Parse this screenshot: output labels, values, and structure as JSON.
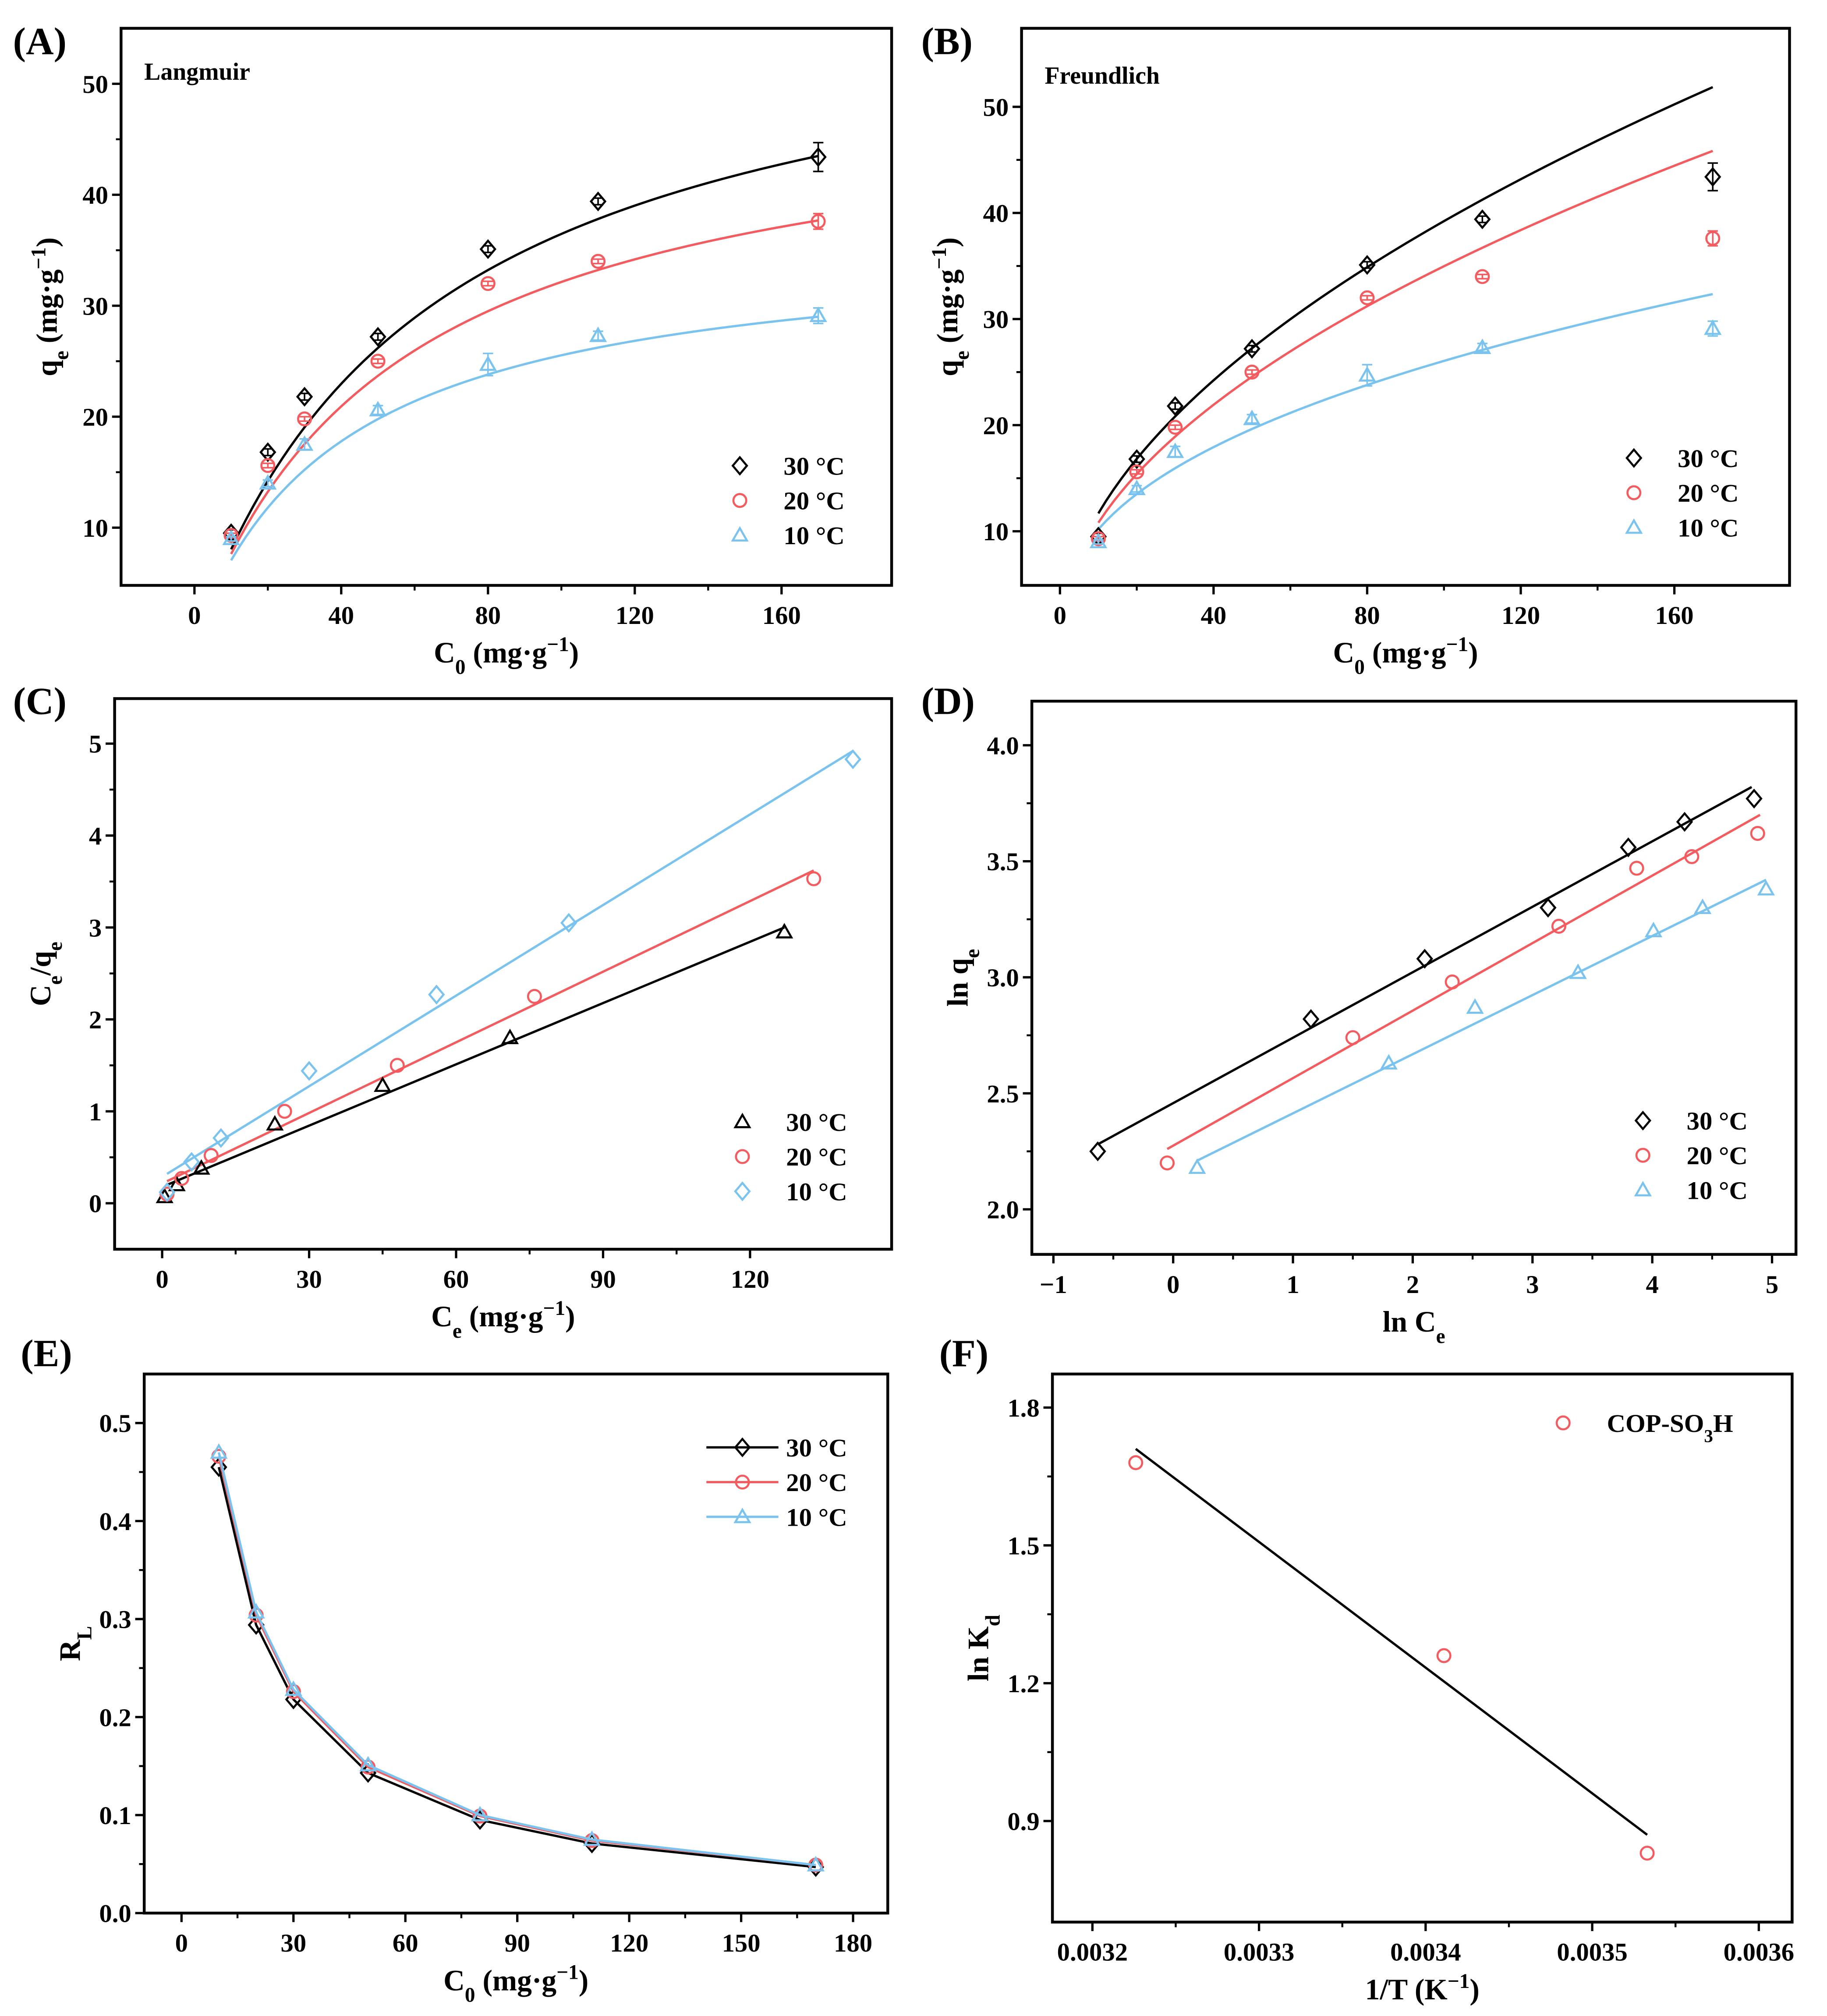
{
  "colors": {
    "t30": "#000000",
    "t20": "#f45b5f",
    "t10": "#79c3ee"
  },
  "chart_data": [
    {
      "id": "A",
      "letter": "(A)",
      "type": "scatter",
      "title": "Langmuir",
      "xlim": [
        -20,
        190
      ],
      "ylim": [
        4.8,
        55
      ],
      "xticks": [
        0,
        40,
        80,
        120,
        160
      ],
      "yticks": [
        10,
        20,
        30,
        40,
        50
      ],
      "xlabel": [
        [
          "C",
          ""
        ],
        [
          "0",
          "sub"
        ],
        [
          " (mg·g",
          ""
        ],
        [
          "−1",
          "sup"
        ],
        [
          ")",
          ""
        ]
      ],
      "ylabel": [
        [
          "q",
          ""
        ],
        [
          "e",
          "sub"
        ],
        [
          " (mg·g",
          ""
        ],
        [
          "−1",
          "sup"
        ],
        [
          ")",
          ""
        ]
      ],
      "legend": "bottom-right",
      "series": [
        {
          "name": "30 °C",
          "color": "t30",
          "marker": "diamond",
          "x": [
            10,
            20,
            30,
            50,
            80,
            110,
            170
          ],
          "y": [
            9.5,
            16.8,
            21.8,
            27.2,
            35.1,
            39.4,
            43.4
          ],
          "err": [
            0.3,
            0.3,
            0.3,
            0.3,
            0.3,
            0.3,
            1.3
          ],
          "fit": {
            "model": "langmuir",
            "qm": 60,
            "K": 0.0155
          }
        },
        {
          "name": "20 °C",
          "color": "t20",
          "marker": "circle",
          "x": [
            10,
            20,
            30,
            50,
            80,
            110,
            170
          ],
          "y": [
            9.3,
            15.6,
            19.8,
            25.0,
            32.0,
            34.0,
            37.6
          ],
          "err": [
            0.2,
            0.2,
            0.2,
            0.2,
            0.2,
            0.2,
            0.7
          ],
          "fit": {
            "model": "langmuir",
            "qm": 50,
            "K": 0.018
          }
        },
        {
          "name": "10 °C",
          "color": "t10",
          "marker": "triangle",
          "x": [
            10,
            20,
            30,
            50,
            80,
            110,
            170
          ],
          "y": [
            9.0,
            14.0,
            17.5,
            20.6,
            24.7,
            27.3,
            29.1
          ],
          "err": [
            0.2,
            0.3,
            0.5,
            0.4,
            1.0,
            0.4,
            0.7
          ],
          "fit": {
            "model": "langmuir",
            "qm": 36,
            "K": 0.0244
          }
        }
      ]
    },
    {
      "id": "B",
      "letter": "(B)",
      "type": "scatter",
      "title": "Freundlich",
      "xlim": [
        -10,
        190
      ],
      "ylim": [
        4.9,
        57.4
      ],
      "xticks": [
        0,
        40,
        80,
        120,
        160
      ],
      "yticks": [
        10,
        20,
        30,
        40,
        50
      ],
      "xlabel": [
        [
          "C",
          ""
        ],
        [
          "0",
          "sub"
        ],
        [
          " (mg·g",
          ""
        ],
        [
          "−1",
          "sup"
        ],
        [
          ")",
          ""
        ]
      ],
      "ylabel": [
        [
          "q",
          ""
        ],
        [
          "e",
          "sub"
        ],
        [
          " (mg·g",
          ""
        ],
        [
          "−1",
          "sup"
        ],
        [
          ")",
          ""
        ]
      ],
      "legend": "bottom-right",
      "series": [
        {
          "name": "30 °C",
          "color": "t30",
          "marker": "diamond",
          "x": [
            10,
            20,
            30,
            50,
            80,
            110,
            170
          ],
          "y": [
            9.5,
            16.8,
            21.8,
            27.2,
            35.1,
            39.4,
            43.4
          ],
          "err": [
            0.3,
            0.3,
            0.3,
            0.3,
            0.3,
            0.3,
            1.3
          ],
          "fit": {
            "model": "freundlich",
            "Kf": 3.48,
            "n_inv": 0.526
          }
        },
        {
          "name": "20 °C",
          "color": "t20",
          "marker": "circle",
          "x": [
            10,
            20,
            30,
            50,
            80,
            110,
            170
          ],
          "y": [
            9.3,
            15.6,
            19.8,
            25.0,
            32.0,
            34.0,
            37.6
          ],
          "err": [
            0.2,
            0.2,
            0.2,
            0.2,
            0.2,
            0.2,
            0.7
          ],
          "fit": {
            "model": "freundlich",
            "Kf": 3.34,
            "n_inv": 0.51
          }
        },
        {
          "name": "10 °C",
          "color": "t10",
          "marker": "triangle",
          "x": [
            10,
            20,
            30,
            50,
            80,
            110,
            170
          ],
          "y": [
            9.0,
            14.0,
            17.5,
            20.6,
            24.7,
            27.3,
            29.1
          ],
          "err": [
            0.2,
            0.3,
            0.5,
            0.4,
            1.0,
            0.4,
            0.7
          ],
          "fit": {
            "model": "freundlich",
            "Kf": 3.98,
            "n_inv": 0.408
          }
        }
      ]
    },
    {
      "id": "C",
      "letter": "(C)",
      "type": "scatter",
      "title": "",
      "xlim": [
        -9.7,
        148.9
      ],
      "ylim": [
        -0.5,
        5.49
      ],
      "xticks": [
        0,
        30,
        60,
        90,
        120
      ],
      "yticks": [
        0,
        1,
        2,
        3,
        4,
        5
      ],
      "xlabel": [
        [
          "C",
          ""
        ],
        [
          "e",
          "sub"
        ],
        [
          " (mg·g",
          ""
        ],
        [
          "−1",
          "sup"
        ],
        [
          ")",
          ""
        ]
      ],
      "ylabel": [
        [
          "C",
          ""
        ],
        [
          "e",
          "sub"
        ],
        [
          "/q",
          ""
        ],
        [
          "e",
          "sub"
        ]
      ],
      "legend": "bottom-right",
      "series": [
        {
          "name": "30 °C",
          "color": "t30",
          "marker": "triangle",
          "x": [
            0.5,
            3,
            8,
            23,
            45,
            71,
            127
          ],
          "y": [
            0.07,
            0.2,
            0.38,
            0.86,
            1.28,
            1.8,
            2.95
          ],
          "fit": {
            "model": "line",
            "x": [
              1,
              127
            ],
            "y": [
              0.2,
              3.0
            ]
          }
        },
        {
          "name": "20 °C",
          "color": "t20",
          "marker": "circle",
          "x": [
            1,
            4,
            10,
            25,
            48,
            76,
            133
          ],
          "y": [
            0.1,
            0.27,
            0.52,
            1.0,
            1.5,
            2.25,
            3.53
          ],
          "fit": {
            "model": "line",
            "x": [
              1,
              133
            ],
            "y": [
              0.24,
              3.62
            ]
          }
        },
        {
          "name": "10 °C",
          "color": "t10",
          "marker": "diamond",
          "x": [
            1,
            6,
            12,
            30,
            56,
            83,
            141
          ],
          "y": [
            0.12,
            0.45,
            0.71,
            1.44,
            2.27,
            3.05,
            4.83
          ],
          "fit": {
            "model": "line",
            "x": [
              1,
              141
            ],
            "y": [
              0.32,
              4.92
            ]
          }
        }
      ]
    },
    {
      "id": "D",
      "letter": "(D)",
      "type": "scatter",
      "title": "",
      "xlim": [
        -1.18,
        5.2
      ],
      "ylim": [
        1.806,
        4.19
      ],
      "xticks": [
        -1,
        0,
        1,
        2,
        3,
        4,
        5
      ],
      "yticks": [
        2.0,
        2.5,
        3.0,
        3.5,
        4.0
      ],
      "xtick_labels": [
        "−1",
        "0",
        "1",
        "2",
        "3",
        "4",
        "5"
      ],
      "ytick_labels": [
        "2.0",
        "2.5",
        "3.0",
        "3.5",
        "4.0"
      ],
      "xlabel": [
        [
          "ln C",
          ""
        ],
        [
          "e",
          "sub"
        ]
      ],
      "ylabel": [
        [
          "ln q",
          ""
        ],
        [
          "e",
          "sub"
        ]
      ],
      "legend": "bottom-right",
      "series": [
        {
          "name": "30 °C",
          "color": "t30",
          "marker": "diamond",
          "x": [
            -0.63,
            1.15,
            2.1,
            3.13,
            3.8,
            4.27,
            4.85
          ],
          "y": [
            2.25,
            2.82,
            3.08,
            3.3,
            3.56,
            3.67,
            3.77
          ],
          "fit": {
            "model": "line",
            "x": [
              -0.63,
              4.83
            ],
            "y": [
              2.28,
              3.82
            ]
          }
        },
        {
          "name": "20 °C",
          "color": "t20",
          "marker": "circle",
          "x": [
            -0.05,
            1.5,
            2.33,
            3.22,
            3.87,
            4.33,
            4.88
          ],
          "y": [
            2.2,
            2.74,
            2.98,
            3.22,
            3.47,
            3.52,
            3.62
          ],
          "fit": {
            "model": "line",
            "x": [
              -0.05,
              4.9
            ],
            "y": [
              2.26,
              3.7
            ]
          }
        },
        {
          "name": "10 °C",
          "color": "t10",
          "marker": "triangle",
          "x": [
            0.2,
            1.8,
            2.52,
            3.38,
            4.01,
            4.42,
            4.95
          ],
          "y": [
            2.18,
            2.63,
            2.87,
            3.02,
            3.2,
            3.3,
            3.38
          ],
          "fit": {
            "model": "line",
            "x": [
              0.2,
              4.95
            ],
            "y": [
              2.21,
              3.42
            ]
          }
        }
      ]
    },
    {
      "id": "E",
      "letter": "(E)",
      "type": "line",
      "title": "",
      "xlim": [
        -10,
        189.3
      ],
      "ylim": [
        0,
        0.55
      ],
      "xticks": [
        0,
        30,
        60,
        90,
        120,
        150,
        180
      ],
      "yticks": [
        0.0,
        0.1,
        0.2,
        0.3,
        0.4,
        0.5
      ],
      "ytick_labels": [
        "0.0",
        "0.1",
        "0.2",
        "0.3",
        "0.4",
        "0.5"
      ],
      "xlabel": [
        [
          "C",
          ""
        ],
        [
          "0",
          "sub"
        ],
        [
          " (mg·g",
          ""
        ],
        [
          "−1",
          "sup"
        ],
        [
          ")",
          ""
        ]
      ],
      "ylabel": [
        [
          "R",
          ""
        ],
        [
          "L",
          "sub"
        ]
      ],
      "legend": "top-right",
      "series": [
        {
          "name": "30 °C",
          "color": "t30",
          "marker": "diamond",
          "x": [
            10,
            20,
            30,
            50,
            80,
            110,
            170
          ],
          "y": [
            0.455,
            0.294,
            0.218,
            0.143,
            0.095,
            0.071,
            0.047
          ],
          "connect": true
        },
        {
          "name": "20 °C",
          "color": "t20",
          "marker": "circle",
          "x": [
            10,
            20,
            30,
            50,
            80,
            110,
            170
          ],
          "y": [
            0.466,
            0.304,
            0.226,
            0.149,
            0.099,
            0.074,
            0.049
          ],
          "connect": true
        },
        {
          "name": "10 °C",
          "color": "t10",
          "marker": "triangle",
          "x": [
            10,
            20,
            30,
            50,
            80,
            110,
            170
          ],
          "y": [
            0.47,
            0.307,
            0.228,
            0.151,
            0.1,
            0.075,
            0.049
          ],
          "connect": true
        }
      ]
    },
    {
      "id": "F",
      "letter": "(F)",
      "type": "scatter",
      "title": "",
      "xlim": [
        0.003176,
        0.00362
      ],
      "ylim": [
        0.68,
        1.873
      ],
      "xticks": [
        0.0032,
        0.0033,
        0.0034,
        0.0035,
        0.0036
      ],
      "yticks": [
        0.9,
        1.2,
        1.5,
        1.8
      ],
      "xtick_labels": [
        "0.0032",
        "0.0033",
        "0.0034",
        "0.0035",
        "0.0036"
      ],
      "ytick_labels": [
        "0.9",
        "1.2",
        "1.5",
        "1.8"
      ],
      "xlabel": [
        [
          "1/T (K",
          ""
        ],
        [
          "−1",
          "sup"
        ],
        [
          ")",
          ""
        ]
      ],
      "ylabel": [
        [
          "ln K",
          ""
        ],
        [
          "d",
          "sub"
        ]
      ],
      "legend": "top-right",
      "series": [
        {
          "name": [
            [
              "COP-SO",
              ""
            ],
            [
              "3",
              "sub"
            ],
            [
              "H",
              ""
            ]
          ],
          "color": "t20",
          "marker": "circle",
          "x": [
            0.003226,
            0.003411,
            0.003533
          ],
          "y": [
            1.68,
            1.26,
            0.83
          ],
          "fit": {
            "model": "line",
            "x": [
              0.003226,
              0.003533
            ],
            "y": [
              1.71,
              0.87
            ],
            "color": "t30"
          }
        }
      ]
    }
  ]
}
